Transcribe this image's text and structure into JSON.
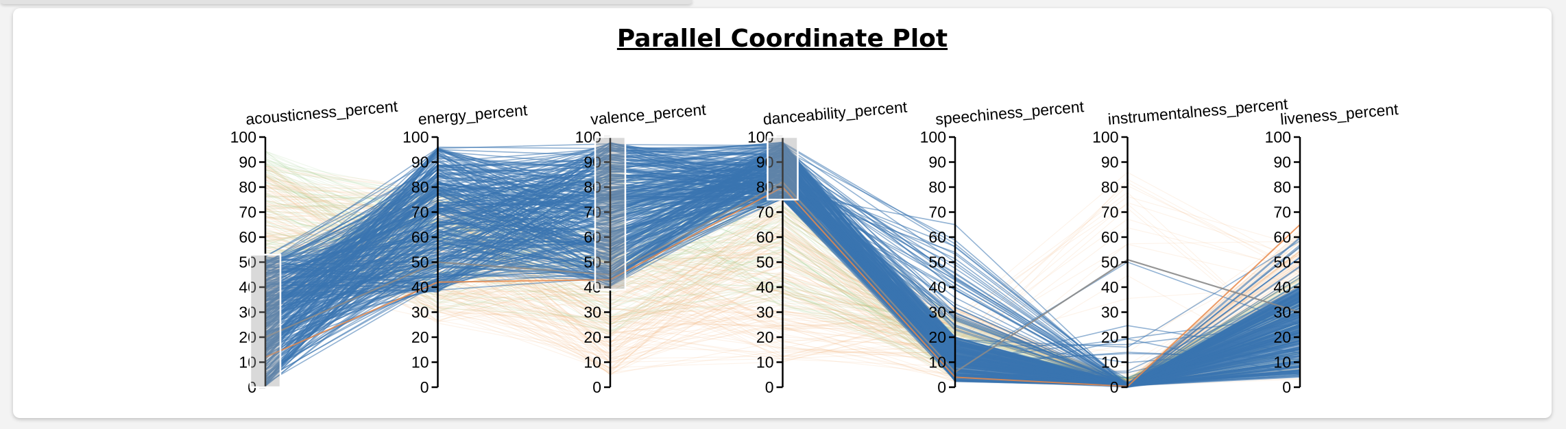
{
  "page": {
    "title": "Parallel Coordinate Plot"
  },
  "colors": {
    "highlight": "#3a75b0",
    "muted_green": "#9bcf86",
    "muted_orange": "#f4b37a",
    "brush_fill": "#9a9a9a",
    "brush_stroke": "#ffffff",
    "accent_gray": "#8a8a8a",
    "accent_orange": "#e8884a"
  },
  "chart_data": {
    "type": "parallel-coordinates",
    "title": "Parallel Coordinate Plot",
    "dimensions": [
      "acousticness_percent",
      "energy_percent",
      "valence_percent",
      "danceability_percent",
      "speechiness_percent",
      "instrumentalness_percent",
      "liveness_percent"
    ],
    "ticks": [
      0,
      10,
      20,
      30,
      40,
      50,
      60,
      70,
      80,
      90,
      100
    ],
    "ylim": [
      0,
      100
    ],
    "brushes": [
      {
        "dimension": "acousticness_percent",
        "range": [
          0,
          53
        ]
      },
      {
        "dimension": "valence_percent",
        "range": [
          39,
          100
        ]
      },
      {
        "dimension": "danceability_percent",
        "range": [
          75,
          100
        ]
      }
    ],
    "sample_lines_highlighted": [
      [
        10,
        70,
        65,
        85,
        10,
        0,
        12
      ],
      [
        25,
        60,
        80,
        90,
        5,
        0,
        20
      ],
      [
        40,
        85,
        45,
        80,
        25,
        0,
        8
      ],
      [
        5,
        50,
        95,
        92,
        3,
        0,
        30
      ],
      [
        52,
        45,
        60,
        88,
        40,
        0,
        15
      ],
      [
        15,
        95,
        70,
        95,
        15,
        0,
        10
      ],
      [
        30,
        75,
        55,
        78,
        65,
        0,
        35
      ],
      [
        20,
        65,
        90,
        86,
        8,
        50,
        25
      ]
    ]
  }
}
